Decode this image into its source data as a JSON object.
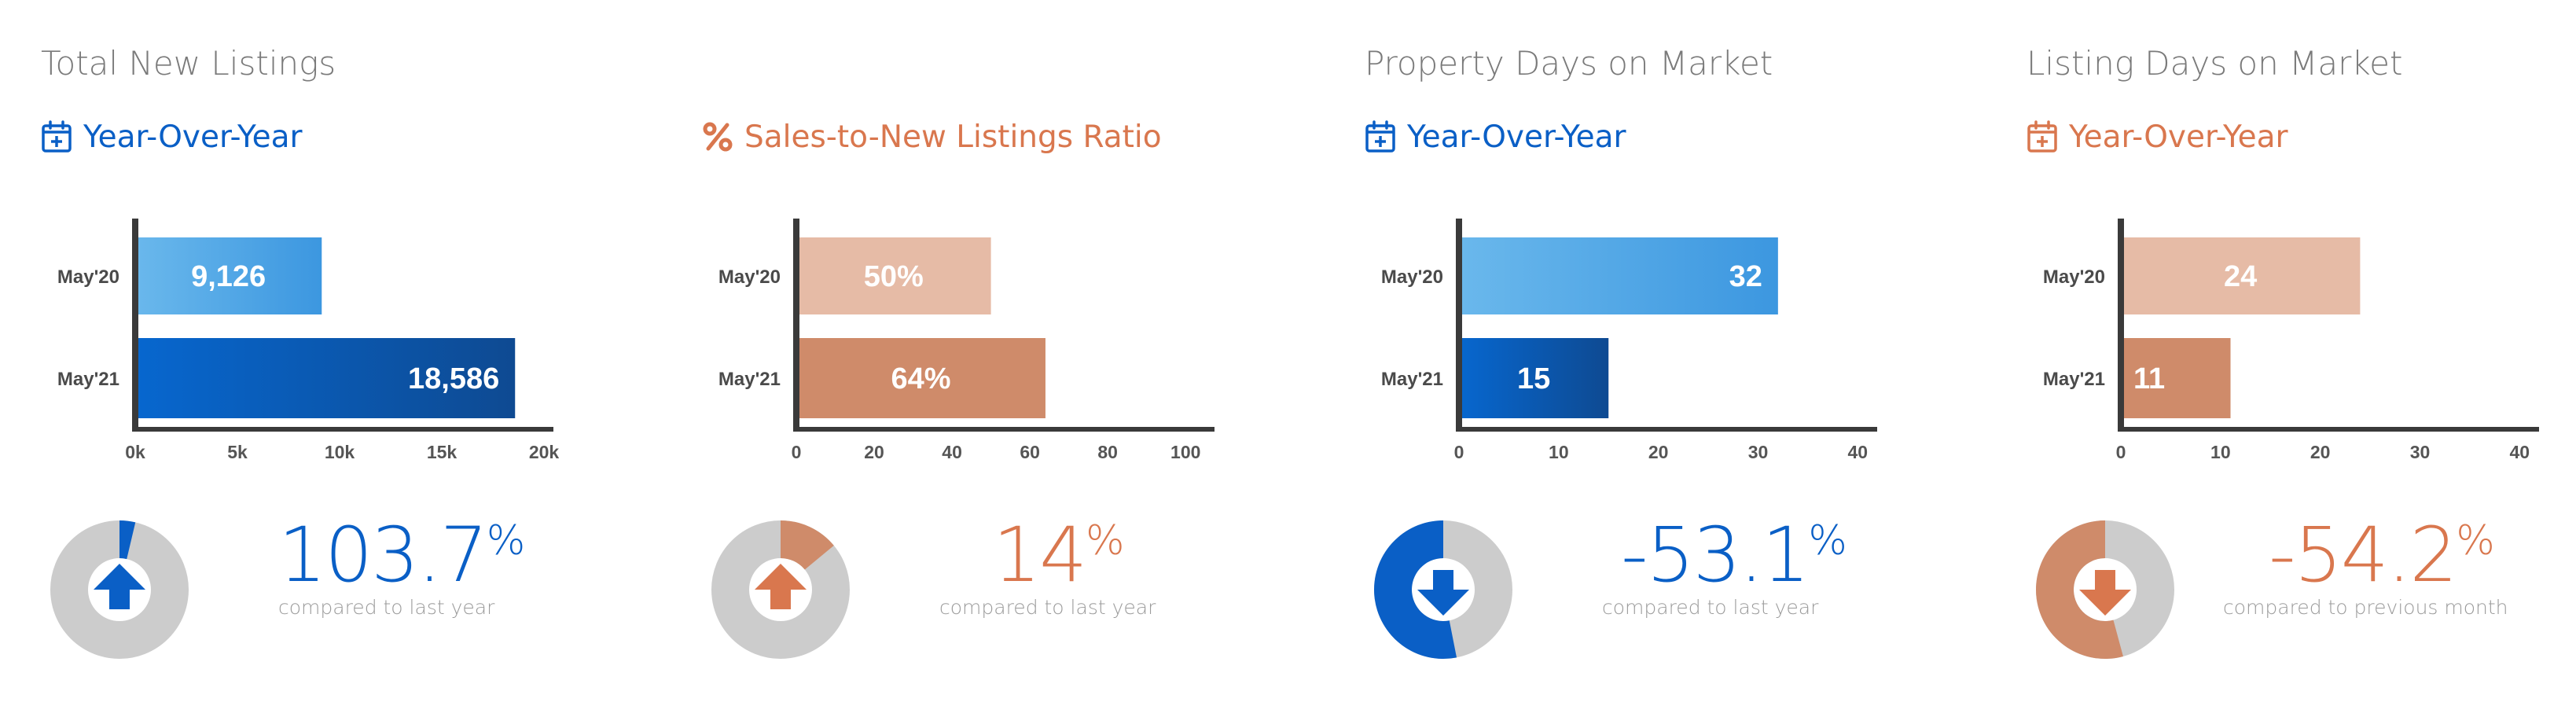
{
  "colors": {
    "blue_dark": "#0a5fc6",
    "blue_light": "#56a9e6",
    "orange_dark": "#cf8b6a",
    "orange_light": "#e6bba6",
    "orange_accent": "#d9774e",
    "donut_bg": "#cccccc",
    "axis": "#3a3a3a"
  },
  "panels": [
    {
      "title": "Total New Listings",
      "subtitle": "Year-Over-Year",
      "subtitle_icon": "calendar-plus-icon",
      "theme": "blue",
      "change_value": "103.7",
      "change_unit": "%",
      "caption": "compared to last year",
      "trend": "up",
      "donut_fraction": 0.037
    },
    {
      "title": "",
      "subtitle": "Sales-to-New Listings Ratio",
      "subtitle_icon": "percent-icon",
      "theme": "orange",
      "change_value": "14",
      "change_unit": "%",
      "caption": "compared to last year",
      "trend": "up",
      "donut_fraction": 0.14
    },
    {
      "title": "Property Days on Market",
      "subtitle": "Year-Over-Year",
      "subtitle_icon": "calendar-plus-icon",
      "theme": "blue",
      "change_value": "-53.1",
      "change_unit": "%",
      "caption": "compared to last year",
      "trend": "down",
      "donut_fraction": 0.531
    },
    {
      "title": "Listing Days on Market",
      "subtitle": "Year-Over-Year",
      "subtitle_icon": "calendar-plus-icon",
      "theme": "orange",
      "change_value": "-54.2",
      "change_unit": "%",
      "caption": "compared to previous month",
      "trend": "down",
      "donut_fraction": 0.542
    }
  ],
  "chart_data": [
    {
      "type": "bar",
      "orientation": "horizontal",
      "categories": [
        "May'20",
        "May'21"
      ],
      "values": [
        9126,
        18586
      ],
      "value_labels": [
        "9,126",
        "18,586"
      ],
      "xlim": [
        0,
        20000
      ],
      "xticks": [
        0,
        5000,
        10000,
        15000,
        20000
      ],
      "xtick_labels": [
        "0k",
        "5k",
        "10k",
        "15k",
        "20k"
      ],
      "label_position": [
        "center",
        "inside-end"
      ],
      "grid": false
    },
    {
      "type": "bar",
      "orientation": "horizontal",
      "categories": [
        "May'20",
        "May'21"
      ],
      "values": [
        50,
        64
      ],
      "value_labels": [
        "50%",
        "64%"
      ],
      "xlim": [
        0,
        105
      ],
      "xticks": [
        0,
        20,
        40,
        60,
        80,
        100
      ],
      "xtick_labels": [
        "0",
        "20",
        "40",
        "60",
        "80",
        "100"
      ],
      "label_position": [
        "center",
        "center"
      ],
      "grid": false
    },
    {
      "type": "bar",
      "orientation": "horizontal",
      "categories": [
        "May'20",
        "May'21"
      ],
      "values": [
        32,
        15
      ],
      "value_labels": [
        "32",
        "15"
      ],
      "xlim": [
        0,
        41
      ],
      "xticks": [
        0,
        10,
        20,
        30,
        40
      ],
      "xtick_labels": [
        "0",
        "10",
        "20",
        "30",
        "40"
      ],
      "label_position": [
        "inside-end",
        "center"
      ],
      "grid": false
    },
    {
      "type": "bar",
      "orientation": "horizontal",
      "categories": [
        "May'20",
        "May'21"
      ],
      "values": [
        24,
        11
      ],
      "value_labels": [
        "24",
        "11"
      ],
      "xlim": [
        0,
        41
      ],
      "xticks": [
        0,
        10,
        20,
        30,
        40
      ],
      "xtick_labels": [
        "0",
        "10",
        "20",
        "30",
        "40"
      ],
      "label_position": [
        "center",
        "inside-start"
      ],
      "grid": false
    }
  ]
}
